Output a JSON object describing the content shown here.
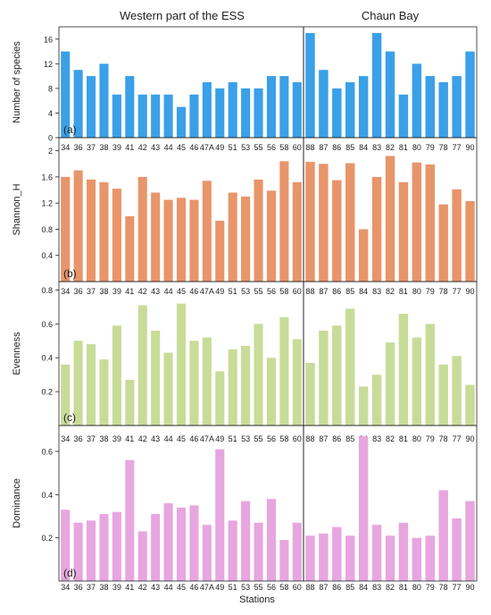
{
  "header": {
    "left": "Western part of the ESS",
    "right": "Chaun Bay"
  },
  "xlabel": "Stations",
  "colors": {
    "species": "#3aa0e8",
    "shannon": "#e8956a",
    "evenness": "#c8dc98",
    "dominance": "#e7a6df",
    "axis": "#222222"
  },
  "chart_data": [
    {
      "type": "bar",
      "panel": "(a)",
      "ylabel": "Number of species",
      "ylim": [
        0,
        18
      ],
      "yticks": [
        "0",
        "4",
        "8",
        "12",
        "16"
      ],
      "ytick_values": [
        0,
        4,
        8,
        12,
        16
      ],
      "categories": [
        "34",
        "36",
        "37",
        "38",
        "39",
        "41",
        "42",
        "43",
        "44",
        "45",
        "46",
        "47A",
        "49",
        "51",
        "53",
        "55",
        "56",
        "58",
        "60",
        "88",
        "87",
        "86",
        "85",
        "84",
        "83",
        "82",
        "81",
        "80",
        "79",
        "78",
        "77",
        "90"
      ],
      "values": [
        14,
        11,
        10,
        12,
        7,
        10,
        7,
        7,
        7,
        5,
        7,
        9,
        8,
        9,
        8,
        8,
        10,
        10,
        9,
        17,
        11,
        8,
        9,
        10,
        17,
        14,
        7,
        12,
        10,
        9,
        10,
        14
      ]
    },
    {
      "type": "bar",
      "panel": "(b)",
      "ylabel": "Shannon_H",
      "ylim": [
        0,
        2.2
      ],
      "yticks": [
        "0.4",
        "0.8",
        "1.2",
        "1.6",
        "2"
      ],
      "ytick_values": [
        0.4,
        0.8,
        1.2,
        1.6,
        2.0
      ],
      "categories": [
        "34",
        "36",
        "37",
        "38",
        "39",
        "41",
        "42",
        "43",
        "44",
        "45",
        "46",
        "47A",
        "49",
        "51",
        "53",
        "55",
        "56",
        "58",
        "60",
        "88",
        "87",
        "86",
        "85",
        "84",
        "83",
        "82",
        "81",
        "80",
        "79",
        "78",
        "77",
        "90"
      ],
      "values": [
        1.6,
        1.7,
        1.56,
        1.52,
        1.42,
        1.0,
        1.6,
        1.36,
        1.25,
        1.28,
        1.25,
        1.54,
        0.93,
        1.36,
        1.3,
        1.56,
        1.39,
        1.84,
        1.52,
        1.83,
        1.8,
        1.55,
        1.81,
        0.8,
        1.6,
        1.92,
        1.52,
        1.82,
        1.79,
        1.18,
        1.41,
        1.23
      ]
    },
    {
      "type": "bar",
      "panel": "(c)",
      "ylabel": "Evenness",
      "ylim": [
        0,
        0.85
      ],
      "yticks": [
        "0.2",
        "0.4",
        "0.6",
        "0.8"
      ],
      "ytick_values": [
        0.2,
        0.4,
        0.6,
        0.8
      ],
      "categories": [
        "34",
        "36",
        "37",
        "38",
        "39",
        "41",
        "42",
        "43",
        "44",
        "45",
        "46",
        "47A",
        "49",
        "51",
        "53",
        "55",
        "56",
        "58",
        "60",
        "88",
        "87",
        "86",
        "85",
        "84",
        "83",
        "82",
        "81",
        "80",
        "79",
        "78",
        "77",
        "90"
      ],
      "values": [
        0.36,
        0.5,
        0.48,
        0.39,
        0.59,
        0.27,
        0.71,
        0.56,
        0.43,
        0.72,
        0.5,
        0.52,
        0.32,
        0.45,
        0.47,
        0.6,
        0.4,
        0.64,
        0.51,
        0.37,
        0.56,
        0.59,
        0.69,
        0.23,
        0.3,
        0.49,
        0.66,
        0.52,
        0.6,
        0.36,
        0.41,
        0.24
      ]
    },
    {
      "type": "bar",
      "panel": "(d)",
      "ylabel": "Dominance",
      "ylim": [
        0,
        0.72
      ],
      "yticks": [
        "0.2",
        "0.4",
        "0.6"
      ],
      "ytick_values": [
        0.2,
        0.4,
        0.6
      ],
      "categories": [
        "34",
        "36",
        "37",
        "38",
        "39",
        "41",
        "42",
        "43",
        "44",
        "45",
        "46",
        "47A",
        "49",
        "51",
        "53",
        "55",
        "56",
        "58",
        "60",
        "88",
        "87",
        "86",
        "85",
        "84",
        "83",
        "82",
        "81",
        "80",
        "79",
        "78",
        "77",
        "90"
      ],
      "values": [
        0.33,
        0.27,
        0.28,
        0.31,
        0.32,
        0.56,
        0.23,
        0.31,
        0.36,
        0.34,
        0.35,
        0.26,
        0.61,
        0.28,
        0.37,
        0.27,
        0.38,
        0.19,
        0.27,
        0.21,
        0.22,
        0.25,
        0.21,
        0.67,
        0.26,
        0.21,
        0.27,
        0.2,
        0.21,
        0.42,
        0.29,
        0.37
      ]
    }
  ]
}
